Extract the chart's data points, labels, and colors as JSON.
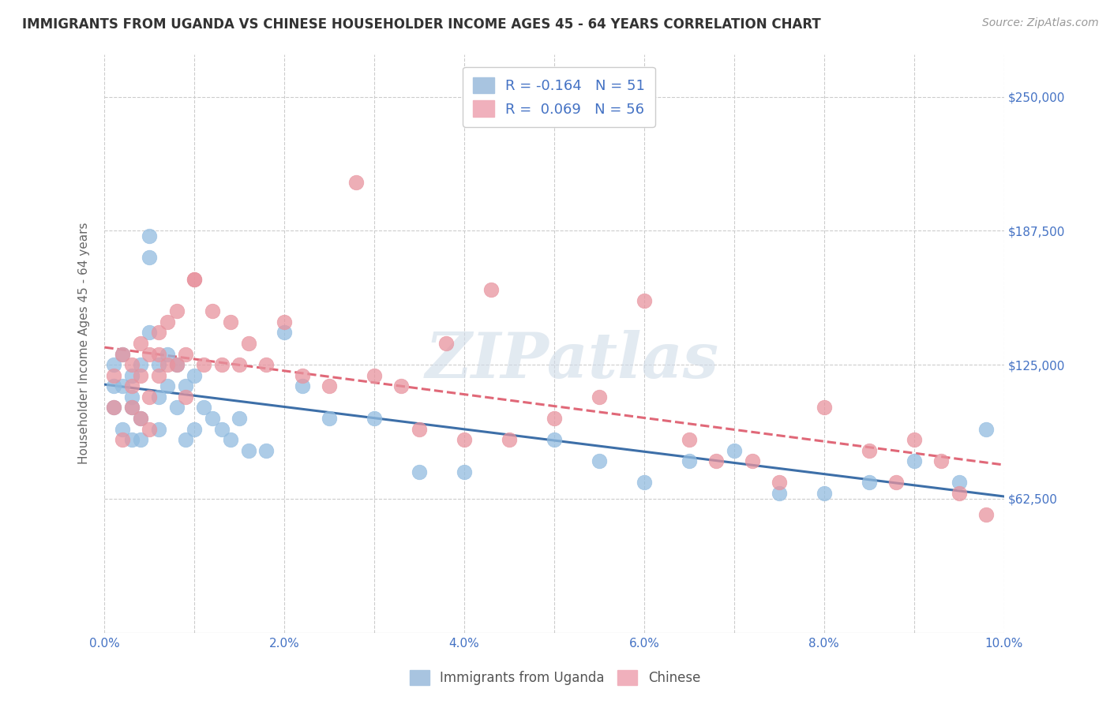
{
  "title": "IMMIGRANTS FROM UGANDA VS CHINESE HOUSEHOLDER INCOME AGES 45 - 64 YEARS CORRELATION CHART",
  "source": "Source: ZipAtlas.com",
  "ylabel": "Householder Income Ages 45 - 64 years",
  "x_min": 0.0,
  "x_max": 0.1,
  "y_min": 0,
  "y_max": 270000,
  "yticks": [
    62500,
    125000,
    187500,
    250000
  ],
  "ytick_labels": [
    "$62,500",
    "$125,000",
    "$187,500",
    "$250,000"
  ],
  "xticks": [
    0.0,
    0.01,
    0.02,
    0.03,
    0.04,
    0.05,
    0.06,
    0.07,
    0.08,
    0.09,
    0.1
  ],
  "xtick_labels_major": [
    "0.0%",
    "",
    "2.0%",
    "",
    "4.0%",
    "",
    "6.0%",
    "",
    "8.0%",
    "",
    "10.0%"
  ],
  "uganda_color": "#92bce0",
  "chinese_color": "#e8939e",
  "uganda_line_color": "#3d6fa8",
  "chinese_line_color": "#e06878",
  "watermark": "ZIPatlas",
  "background_color": "#ffffff",
  "grid_color": "#cccccc",
  "title_color": "#333333",
  "axis_label_color": "#666666",
  "tick_label_color": "#4472c4",
  "uganda_x": [
    0.001,
    0.001,
    0.001,
    0.002,
    0.002,
    0.002,
    0.003,
    0.003,
    0.003,
    0.003,
    0.004,
    0.004,
    0.004,
    0.005,
    0.005,
    0.005,
    0.006,
    0.006,
    0.006,
    0.007,
    0.007,
    0.008,
    0.008,
    0.009,
    0.009,
    0.01,
    0.01,
    0.011,
    0.012,
    0.013,
    0.014,
    0.015,
    0.016,
    0.018,
    0.02,
    0.022,
    0.025,
    0.03,
    0.035,
    0.04,
    0.05,
    0.055,
    0.06,
    0.065,
    0.07,
    0.075,
    0.08,
    0.085,
    0.09,
    0.095,
    0.098
  ],
  "uganda_y": [
    125000,
    115000,
    105000,
    130000,
    95000,
    115000,
    120000,
    105000,
    90000,
    110000,
    125000,
    100000,
    90000,
    185000,
    175000,
    140000,
    125000,
    110000,
    95000,
    130000,
    115000,
    125000,
    105000,
    115000,
    90000,
    120000,
    95000,
    105000,
    100000,
    95000,
    90000,
    100000,
    85000,
    85000,
    140000,
    115000,
    100000,
    100000,
    75000,
    75000,
    90000,
    80000,
    70000,
    80000,
    85000,
    65000,
    65000,
    70000,
    80000,
    70000,
    95000
  ],
  "chinese_x": [
    0.001,
    0.001,
    0.002,
    0.002,
    0.003,
    0.003,
    0.003,
    0.004,
    0.004,
    0.004,
    0.005,
    0.005,
    0.005,
    0.006,
    0.006,
    0.006,
    0.007,
    0.007,
    0.008,
    0.008,
    0.009,
    0.009,
    0.01,
    0.01,
    0.011,
    0.012,
    0.013,
    0.014,
    0.015,
    0.016,
    0.018,
    0.02,
    0.022,
    0.025,
    0.028,
    0.03,
    0.033,
    0.035,
    0.038,
    0.04,
    0.043,
    0.045,
    0.05,
    0.055,
    0.06,
    0.065,
    0.068,
    0.072,
    0.075,
    0.08,
    0.085,
    0.088,
    0.09,
    0.093,
    0.095,
    0.098
  ],
  "chinese_y": [
    120000,
    105000,
    130000,
    90000,
    125000,
    105000,
    115000,
    135000,
    100000,
    120000,
    130000,
    110000,
    95000,
    140000,
    120000,
    130000,
    145000,
    125000,
    125000,
    150000,
    130000,
    110000,
    165000,
    165000,
    125000,
    150000,
    125000,
    145000,
    125000,
    135000,
    125000,
    145000,
    120000,
    115000,
    210000,
    120000,
    115000,
    95000,
    135000,
    90000,
    160000,
    90000,
    100000,
    110000,
    155000,
    90000,
    80000,
    80000,
    70000,
    105000,
    85000,
    70000,
    90000,
    80000,
    65000,
    55000
  ],
  "R_uganda": -0.164,
  "N_uganda": 51,
  "R_chinese": 0.069,
  "N_chinese": 56
}
